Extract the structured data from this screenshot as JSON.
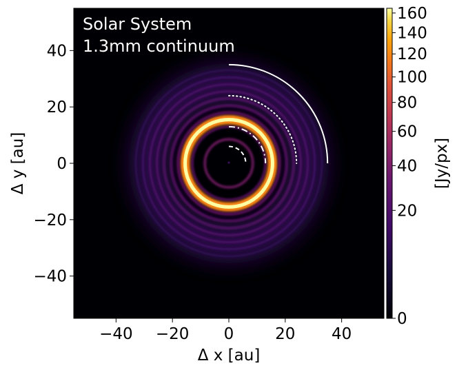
{
  "chart_data": {
    "type": "heatmap",
    "annotation_lines": [
      "Solar System",
      "1.3mm continuum"
    ],
    "xlabel": "Δ x [au]",
    "ylabel": "Δ y [au]",
    "xlim": [
      -55,
      55
    ],
    "ylim": [
      -55,
      55
    ],
    "x_ticks": [
      -40,
      -20,
      0,
      20,
      40
    ],
    "x_tick_labels": [
      "−40",
      "−20",
      "0",
      "20",
      "40"
    ],
    "y_ticks": [
      -40,
      -20,
      0,
      20,
      40
    ],
    "y_tick_labels": [
      "−40",
      "−20",
      "0",
      "20",
      "40"
    ],
    "colorbar": {
      "label": "[Jy/px]",
      "colormap": "inferno",
      "scale": "sqrt",
      "range": [
        0,
        165
      ],
      "ticks": [
        0,
        20,
        40,
        60,
        80,
        100,
        120,
        140,
        160
      ],
      "tick_labels": [
        "0",
        "20",
        "40",
        "60",
        "80",
        "100",
        "120",
        "140",
        "160"
      ]
    },
    "rings": [
      {
        "radius_au": 8.5,
        "intensity": 40
      },
      {
        "radius_au": 13.0,
        "intensity": 30
      },
      {
        "radius_au": 15.5,
        "intensity": 165
      },
      {
        "radius_au": 18.0,
        "intensity": 35
      },
      {
        "radius_au": 20.5,
        "intensity": 28
      },
      {
        "radius_au": 23.0,
        "intensity": 25
      },
      {
        "radius_au": 25.5,
        "intensity": 22
      },
      {
        "radius_au": 28.0,
        "intensity": 20
      },
      {
        "radius_au": 30.5,
        "intensity": 14
      },
      {
        "radius_au": 33.0,
        "intensity": 9
      }
    ],
    "orbit_arcs": [
      {
        "radius_au": 6,
        "style": "dashed"
      },
      {
        "radius_au": 13,
        "style": "dashdot"
      },
      {
        "radius_au": 24,
        "style": "dotted"
      },
      {
        "radius_au": 35,
        "style": "solid"
      }
    ],
    "colors": {
      "background": "#000004",
      "arc": "#ffffff"
    }
  }
}
